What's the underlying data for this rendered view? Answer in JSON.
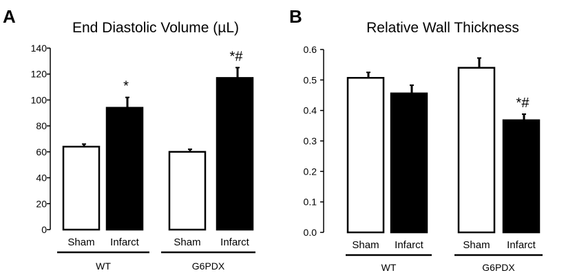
{
  "chart_data": [
    {
      "type": "bar",
      "panel": "A",
      "title": "End Diastolic Volume (µL)",
      "xlabel": "",
      "ylabel": "",
      "ylim": [
        0,
        140
      ],
      "yticks": [
        "0",
        "20",
        "40",
        "60",
        "80",
        "100",
        "120",
        "140"
      ],
      "groups": [
        "WT",
        "G6PDX"
      ],
      "categories": [
        "Sham",
        "Infarct"
      ],
      "series": [
        {
          "name": "WT",
          "values": [
            64,
            94
          ],
          "errors": [
            2,
            8
          ],
          "fills": [
            "#ffffff",
            "#000000"
          ],
          "annotations": [
            "",
            "*"
          ]
        },
        {
          "name": "G6PDX",
          "values": [
            60,
            117
          ],
          "errors": [
            2,
            8
          ],
          "fills": [
            "#ffffff",
            "#000000"
          ],
          "annotations": [
            "",
            "*#"
          ]
        }
      ]
    },
    {
      "type": "bar",
      "panel": "B",
      "title": "Relative Wall Thickness",
      "xlabel": "",
      "ylabel": "",
      "ylim": [
        0,
        0.6
      ],
      "yticks": [
        "0.0",
        "0.1",
        "0.2",
        "0.3",
        "0.4",
        "0.5",
        "0.6"
      ],
      "groups": [
        "WT",
        "G6PDX"
      ],
      "categories": [
        "Sham",
        "Infarct"
      ],
      "series": [
        {
          "name": "WT",
          "values": [
            0.507,
            0.456
          ],
          "errors": [
            0.018,
            0.027
          ],
          "fills": [
            "#ffffff",
            "#000000"
          ],
          "annotations": [
            "",
            ""
          ]
        },
        {
          "name": "G6PDX",
          "values": [
            0.54,
            0.368
          ],
          "errors": [
            0.032,
            0.02
          ],
          "fills": [
            "#ffffff",
            "#000000"
          ],
          "annotations": [
            "",
            "*#"
          ]
        }
      ]
    }
  ]
}
